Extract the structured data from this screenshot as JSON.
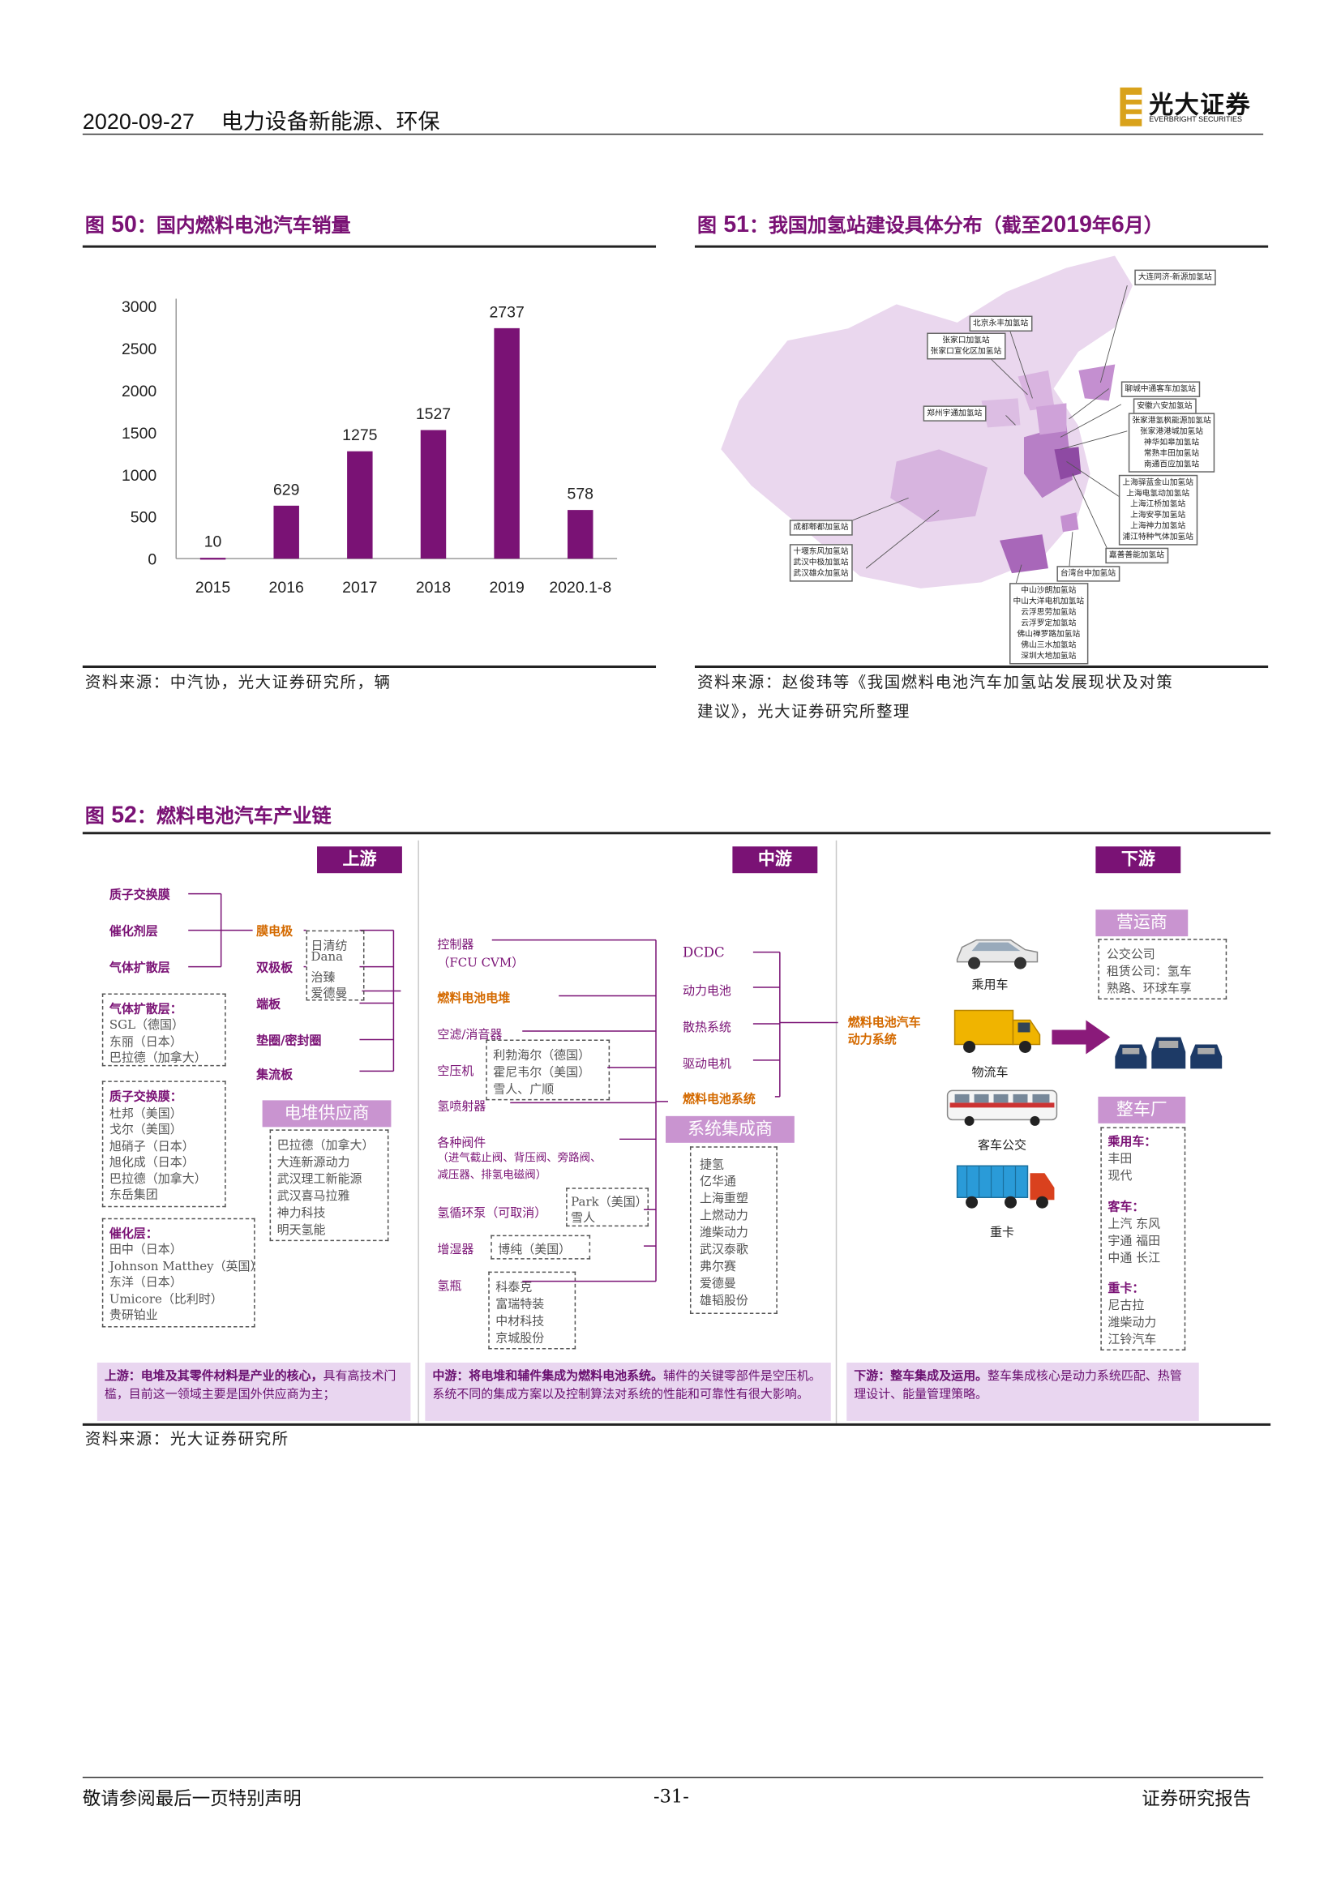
{
  "header": {
    "date": "2020-09-27",
    "sector": "电力设备新能源、环保",
    "logo_text": "光大证券",
    "logo_sub": "EVERBRIGHT SECURITIES"
  },
  "fig50": {
    "title_prefix": "图",
    "title_num": "50",
    "title_text": "：国内燃料电池汽车销量",
    "source": "资料来源：中汽协，光大证券研究所，辆"
  },
  "chart_data": {
    "type": "bar",
    "categories": [
      "2015",
      "2016",
      "2017",
      "2018",
      "2019",
      "2020.1-8"
    ],
    "values": [
      10,
      629,
      1275,
      1527,
      2737,
      578
    ],
    "ylim": [
      0,
      3000
    ],
    "yticks": [
      0,
      500,
      1000,
      1500,
      2000,
      2500,
      3000
    ],
    "title": "",
    "xlabel": "",
    "ylabel": "",
    "bar_color": "#7a1275",
    "grid": false
  },
  "fig51": {
    "title_prefix": "图",
    "title_num": "51",
    "title_text": "：我国加氢站建设具体分布（截至",
    "title_year": "2019",
    "title_mid": "年",
    "title_month": "6",
    "title_end": "月）",
    "source_line1": "资料来源：赵俊玮等《我国燃料电池汽车加氢站发展现状及对策",
    "source_line2": "建议》，光大证券研究所整理",
    "labels": {
      "dalian": "大连同济-新源加氢站",
      "beijing": "北京永丰加氢站",
      "zhangjiakou": "张家口加氢站\n张家口宣化区加氢站",
      "liaocheng": "聊城中通客车加氢站",
      "anhui": "安徽六安加氢站",
      "jiangsu": "张家港氢枫能源加氢站\n张家港港城加氢站\n神华如皋加氢站\n常熟丰田加氢站\n南通百应加氢站",
      "zhengzhou": "郑州宇通加氢站",
      "shanghai": "上海驿蓝金山加氢站\n上海电氢动加氢站\n上海江桥加氢站\n上海安亭加氢站\n上海神力加氢站\n浦江特种气体加氢站",
      "chengdu": "成都郫都加氢站",
      "wuhan": "十堰东风加氢站\n武汉中极加氢站\n武汉雄众加氢站",
      "jiashan": "嘉善善能加氢站",
      "taiwan": "台湾台中加氢站",
      "guangdong": "中山沙朗加氢站\n中山大洋电机加氢站\n云浮思劳加氢站\n云浮罗定加氢站\n佛山禅罗路加氢站\n佛山三水加氢站\n深圳大地加氢站"
    }
  },
  "fig52": {
    "title_prefix": "图",
    "title_num": "52",
    "title_text": "：燃料电池汽车产业链",
    "source": "资料来源：光大证券研究所",
    "upstream": {
      "header": "上游",
      "materials": [
        "质子交换膜",
        "催化剂层",
        "气体扩散层"
      ],
      "components": [
        "膜电极",
        "双极板",
        "端板",
        "垫圈/密封圈",
        "集流板"
      ],
      "bp_suppliers": [
        "日清纺",
        "Dana",
        "治臻",
        "爱德曼"
      ],
      "gdl_title": "气体扩散层：",
      "gdl_list": [
        "SGL（德国）",
        "东丽（日本）",
        "巴拉德（加拿大）"
      ],
      "pem_title": "质子交换膜：",
      "pem_list": [
        "杜邦（美国）",
        "戈尔（美国）",
        "旭硝子（日本）",
        "旭化成（日本）",
        "巴拉德（加拿大）",
        "东岳集团"
      ],
      "cat_title": "催化层：",
      "cat_list": [
        "田中（日本）",
        "Johnson Matthey（英国）",
        "东洋（日本）",
        "Umicore（比利时）",
        "贵研铂业"
      ],
      "stack_header": "电堆供应商",
      "stack_list": [
        "巴拉德（加拿大）",
        "大连新源动力",
        "武汉理工新能源",
        "武汉喜马拉雅",
        "神力科技",
        "明天氢能"
      ],
      "note_bold": "上游：电堆及其零件材料是产业的核心，",
      "note_rest": "具有高技术门槛，目前这一领域主要是国外供应商为主；"
    },
    "midstream": {
      "header": "中游",
      "items": [
        "控制器",
        "（FCU CVM）",
        "燃料电池电堆",
        "空滤/消音器",
        "空压机",
        "氢喷射器",
        "各种阀件",
        "（进气截止阀、背压阀、旁路阀、",
        "减压器、排氢电磁阀）",
        "氢循环泵（可取消）",
        "增湿器",
        "氢瓶"
      ],
      "comp_list": [
        "利勃海尔（德国）",
        "霍尼韦尔（美国）",
        "雪人、广顺"
      ],
      "pump_list": [
        "Park（美国）",
        "雪人"
      ],
      "hum_list": [
        "博纯（美国）"
      ],
      "bottle_list": [
        "科泰克",
        "富瑞特装",
        "中材科技",
        "京城股份"
      ],
      "right_items": [
        "DCDC",
        "动力电池",
        "散热系统",
        "驱动电机",
        "燃料电池系统"
      ],
      "sys_header": "系统集成商",
      "sys_list": [
        "捷氢",
        "亿华通",
        "上海重塑",
        "上燃动力",
        "潍柴动力",
        "武汉泰歌",
        "弗尔赛",
        "爱德曼",
        "雄韬股份"
      ],
      "note_bold": "中游：将电堆和辅件集成为燃料电池系统。",
      "note_rest": "辅件的关键零部件是空压机。系统不同的集成方案以及控制算法对系统的性能和可靠性有很大影响。"
    },
    "downstream": {
      "header": "下游",
      "ops_header": "营运商",
      "ops_list": [
        "公交公司",
        "租赁公司：氢车",
        "熟路、环球车享"
      ],
      "power_label": "燃料电池汽车\n动力系统",
      "vehicles": [
        "乘用车",
        "物流车",
        "客车公交",
        "重卡"
      ],
      "oem_header": "整车厂",
      "oem_car_title": "乘用车：",
      "oem_car": [
        "丰田",
        "现代"
      ],
      "oem_bus_title": "客车：",
      "oem_bus": [
        "上汽 东风",
        "宇通 福田",
        "中通 长江"
      ],
      "oem_truck_title": "重卡：",
      "oem_truck": [
        "尼古拉",
        "潍柴动力",
        "江铃汽车"
      ],
      "note_bold": "下游：整车集成及运用。",
      "note_rest": "整车集成核心是动力系统匹配、热管理设计、能量管理策略。"
    }
  },
  "footer": {
    "left": "敬请参阅最后一页特别声明",
    "center": "-31-",
    "right": "证券研究报告"
  },
  "colors": {
    "accent": "#7a1275",
    "accent_light": "#c994d0",
    "orange": "#d46a00",
    "note_bg": "#e9d6f0"
  }
}
